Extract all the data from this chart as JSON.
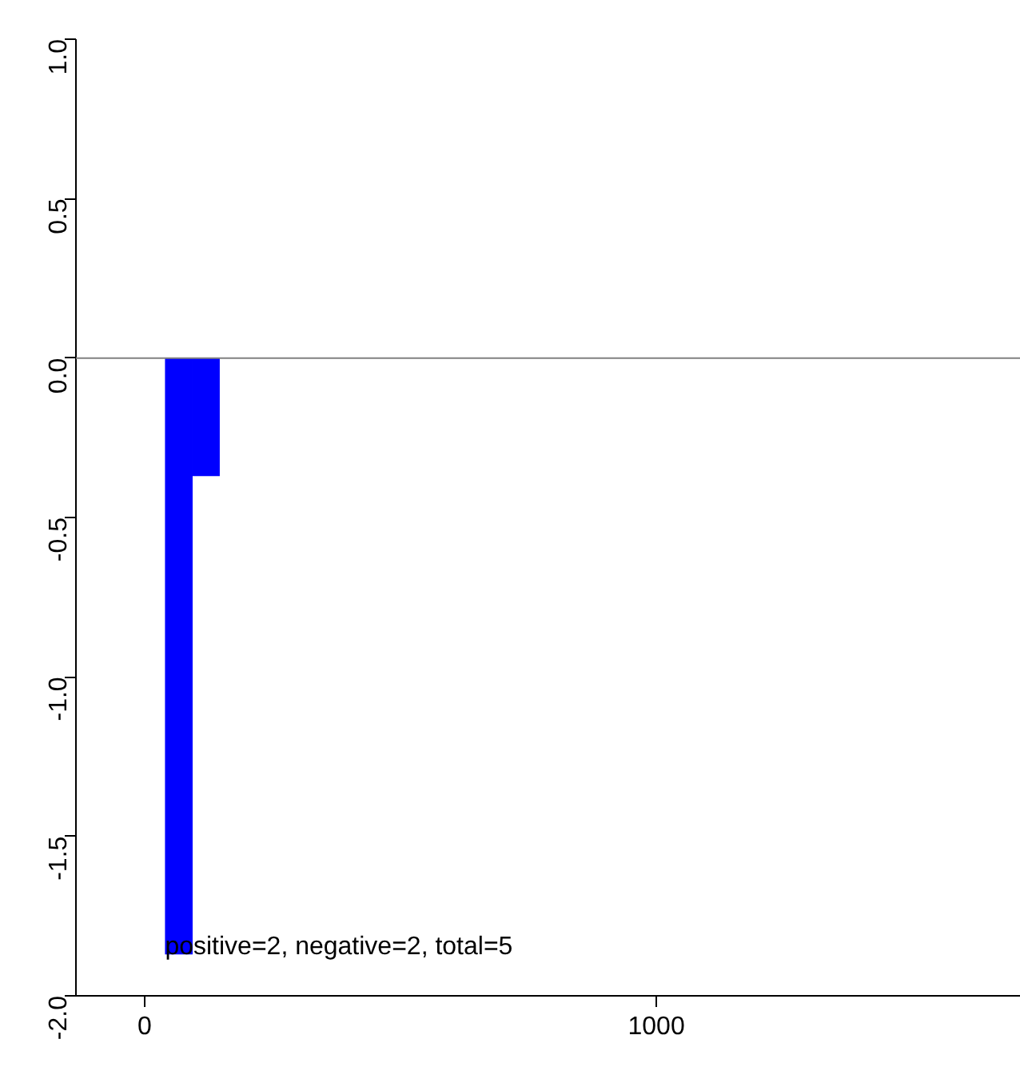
{
  "chart_data": {
    "type": "histogram",
    "bins": [
      40,
      94,
      147
    ],
    "values": [
      -1.87,
      -0.37
    ],
    "color": "#0000ff",
    "xlim": [
      -134,
      1712
    ],
    "xticks": [
      0,
      1000
    ],
    "ylim": [
      -2.0,
      1.0
    ],
    "yticks": [
      {
        "value": -2.0,
        "label": "-2.0"
      },
      {
        "value": -1.5,
        "label": "-1.5"
      },
      {
        "value": -1.0,
        "label": "-1.0"
      },
      {
        "value": -0.5,
        "label": "-0.5"
      },
      {
        "value": 0.0,
        "label": "0.0"
      },
      {
        "value": 0.5,
        "label": "0.5"
      },
      {
        "value": 1.0,
        "label": "1.0"
      }
    ],
    "ref_lines": [
      {
        "axis": "y",
        "value": 0,
        "color": "#808080"
      }
    ],
    "annotations": [
      "positive=2, negative=2, total=5"
    ],
    "grid": false
  }
}
